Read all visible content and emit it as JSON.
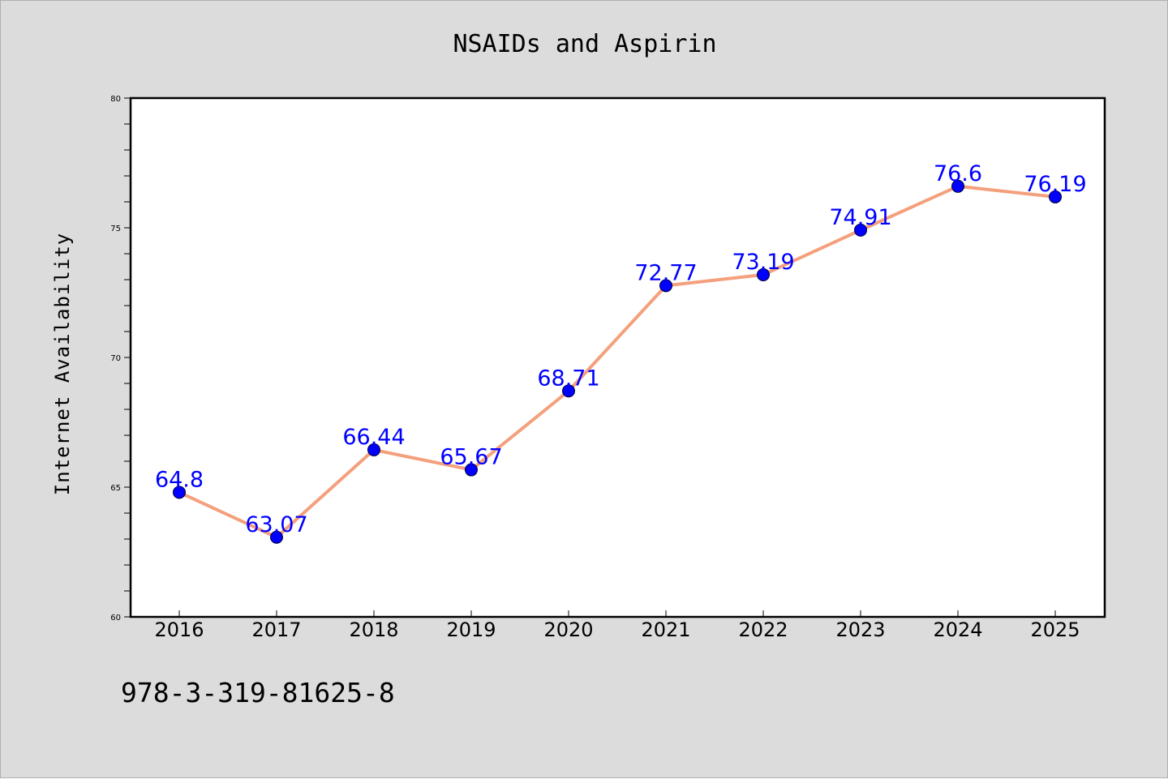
{
  "chart_data": {
    "type": "line",
    "title": "NSAIDs and Aspirin",
    "xlabel": "",
    "ylabel": "Internet Availability",
    "categories": [
      "2016",
      "2017",
      "2018",
      "2019",
      "2020",
      "2021",
      "2022",
      "2023",
      "2024",
      "2025"
    ],
    "series": [
      {
        "values": [
          64.8,
          63.07,
          66.44,
          65.67,
          68.71,
          72.77,
          73.19,
          74.91,
          76.6,
          76.19
        ],
        "data_labels": [
          "64.8",
          "63.07",
          "66.44",
          "65.67",
          "68.71",
          "72.77",
          "73.19",
          "74.91",
          "76.6",
          "76.19"
        ],
        "line_color": "#f4a07c",
        "marker_color": "#0000ff"
      }
    ],
    "ylim": [
      60,
      80
    ],
    "yticks": [
      "60",
      "65",
      "70",
      "75",
      "80"
    ],
    "grid": false,
    "legend": "none"
  },
  "footer": {
    "text": "978-3-319-81625-8"
  },
  "colors": {
    "figure_background": "#dcdcdc",
    "plot_background": "#ffffff",
    "data_label": "#0000ff"
  }
}
